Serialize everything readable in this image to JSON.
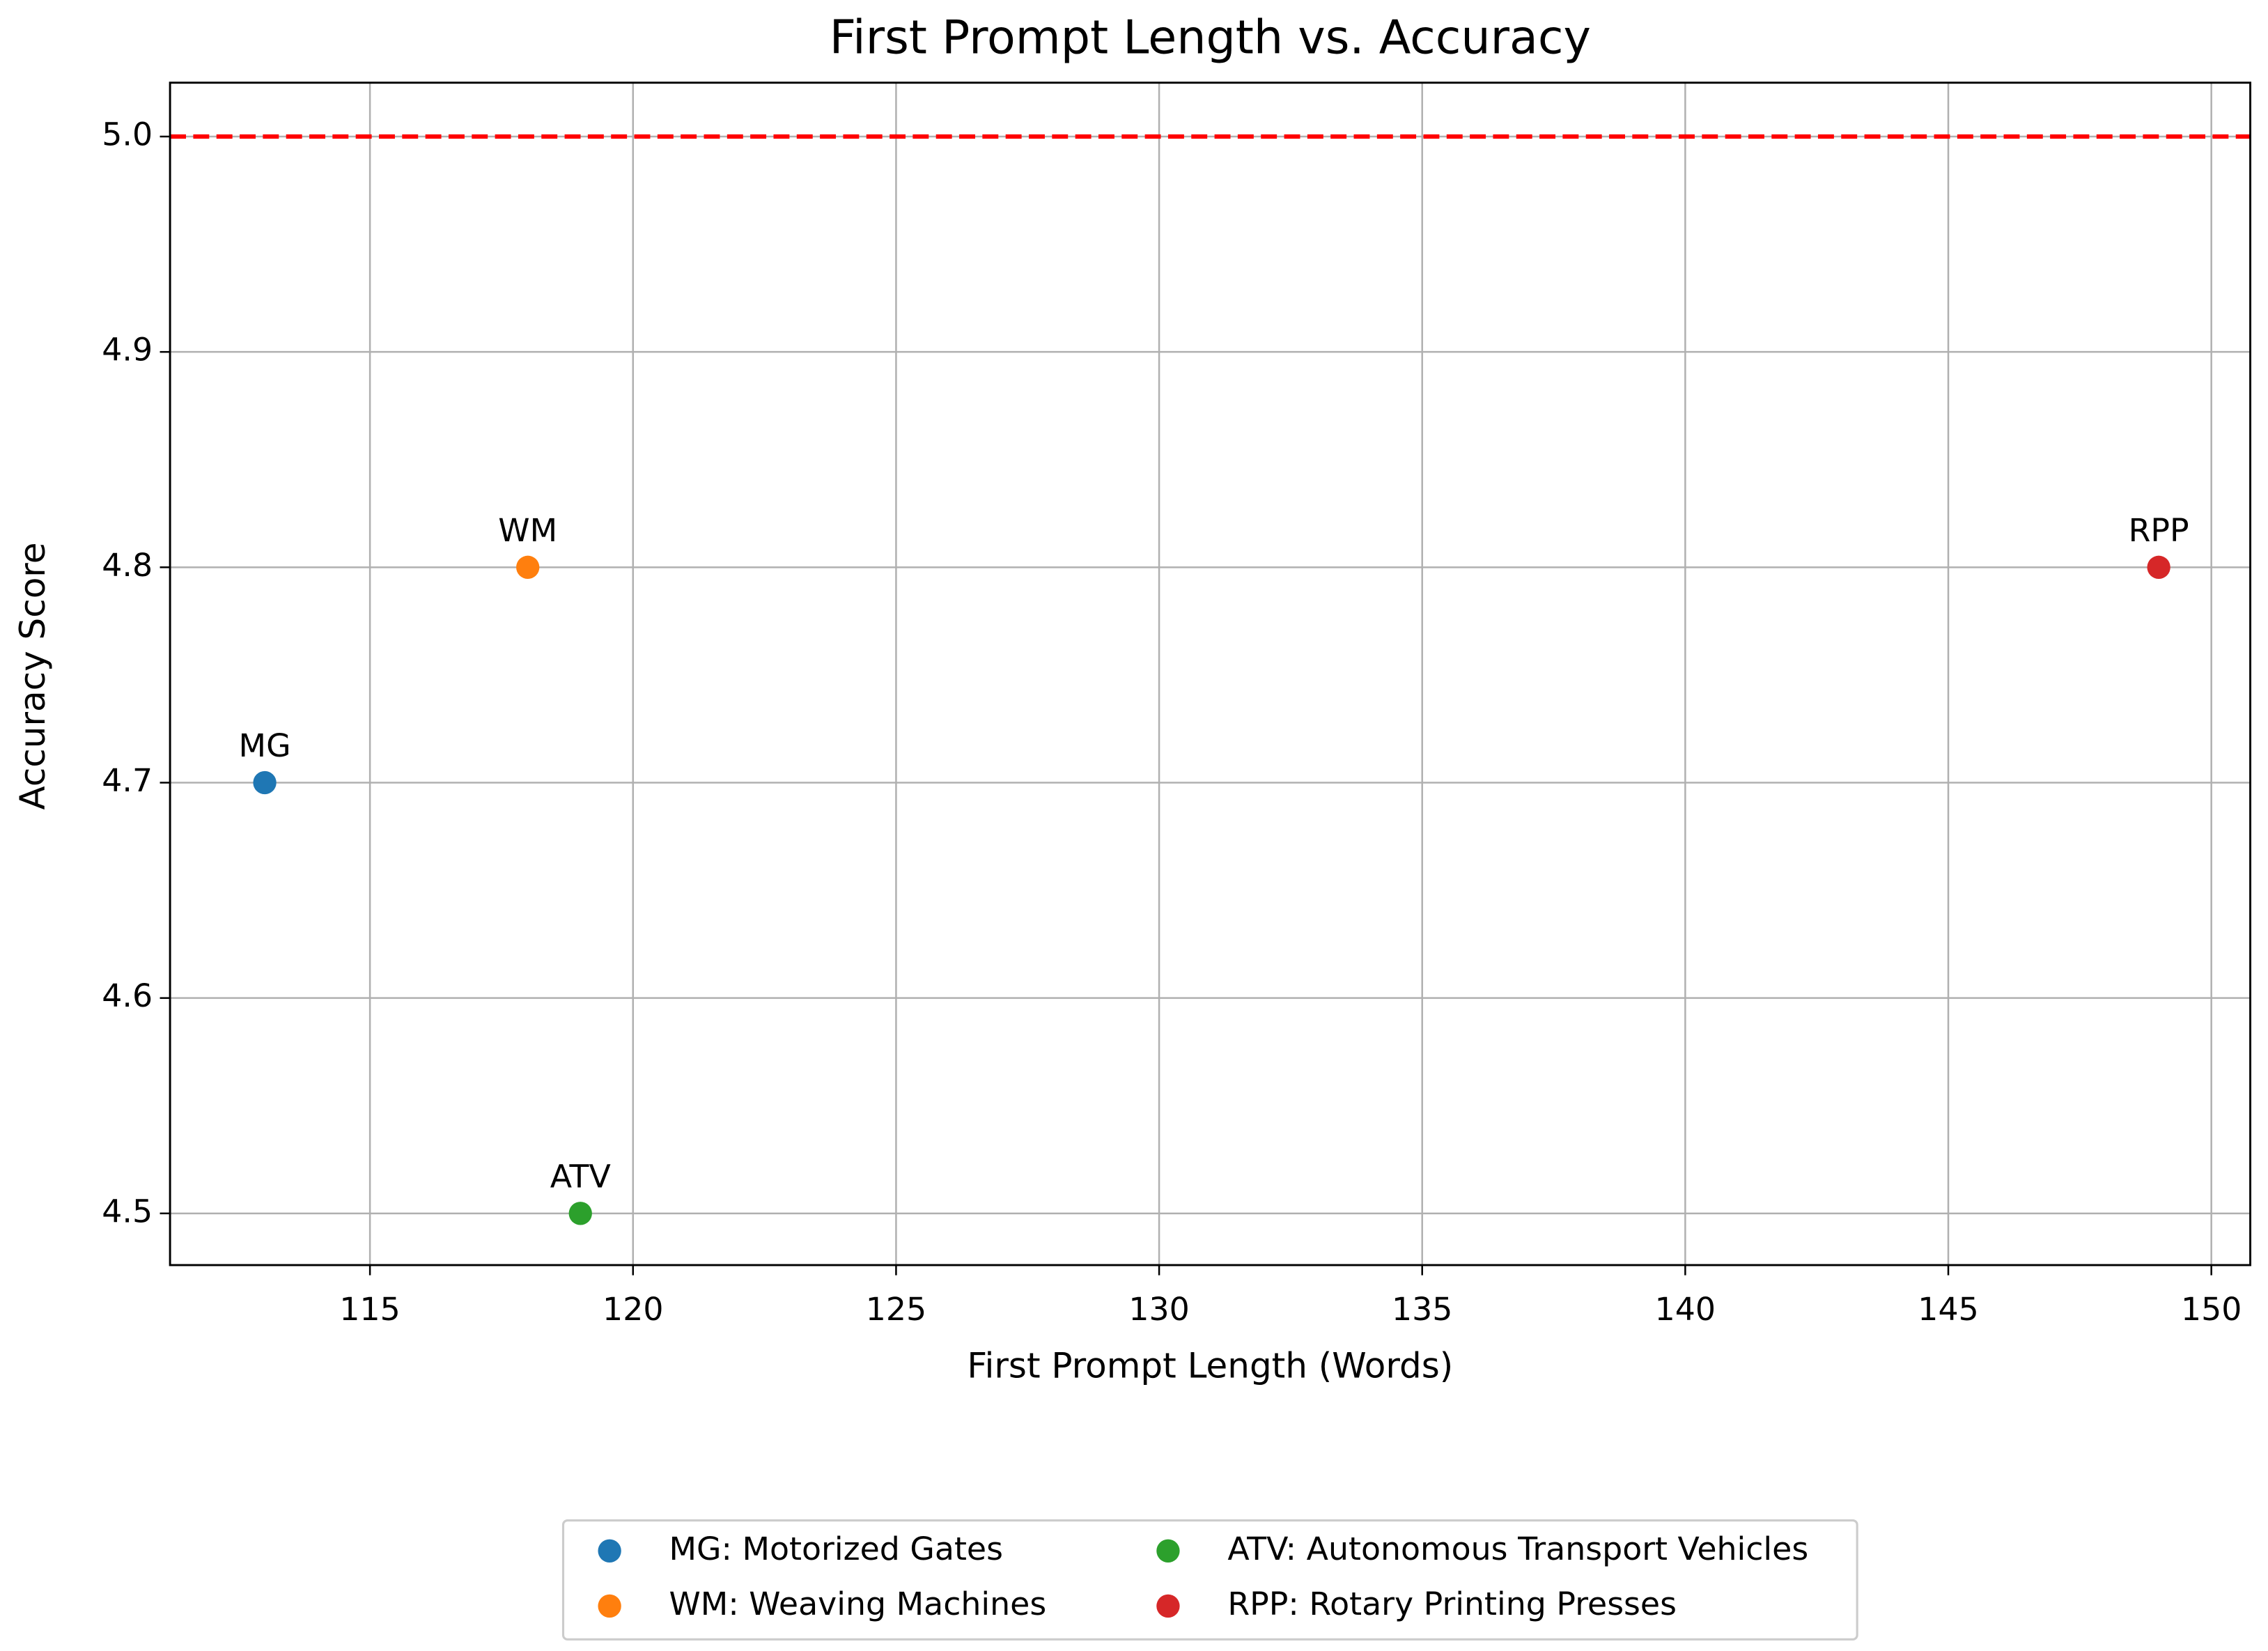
{
  "chart_data": {
    "type": "scatter",
    "title": "First Prompt Length vs. Accuracy",
    "x_label": "First Prompt Length (Words)",
    "y_label": "Accuracy Score",
    "xlim": [
      111.2,
      150.74
    ],
    "ylim": [
      4.476,
      5.025
    ],
    "xticks": [
      115,
      120,
      125,
      130,
      135,
      140,
      145,
      150
    ],
    "yticks": [
      4.5,
      4.6,
      4.7,
      4.8,
      4.9,
      {
        "value": 5,
        "label": "5.0"
      }
    ],
    "grid": true,
    "legend": "lower center",
    "hline": {
      "value": 5,
      "color": "#ff0000"
    },
    "series": [
      {
        "name": "MG: Motorized Gates",
        "label": "MG",
        "color": "#1f77b4",
        "x": [
          113
        ],
        "values": [
          4.7
        ]
      },
      {
        "name": "WM: Weaving Machines",
        "label": "WM",
        "color": "#ff7f0e",
        "x": [
          118
        ],
        "values": [
          4.8
        ]
      },
      {
        "name": "ATV: Autonomous Transport Vehicles",
        "label": "ATV",
        "color": "#2ca02c",
        "x": [
          119
        ],
        "values": [
          4.5
        ]
      },
      {
        "name": "RPP: Rotary Printing Presses",
        "label": "RPP",
        "color": "#d62728",
        "x": [
          149
        ],
        "values": [
          4.8
        ]
      }
    ]
  }
}
